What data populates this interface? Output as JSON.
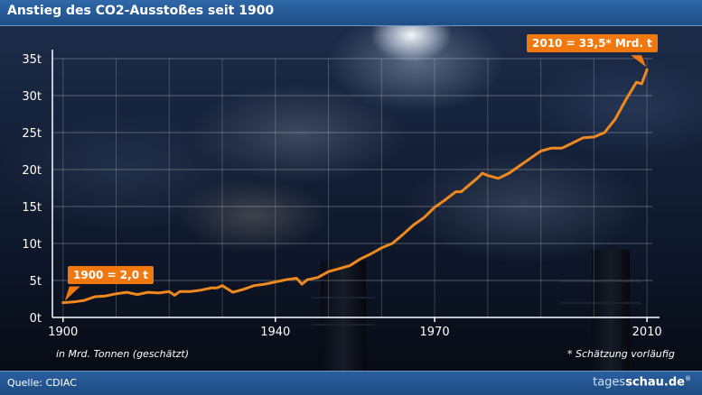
{
  "header": {
    "title": "Anstieg des CO2-Ausstoßes seit 1900"
  },
  "footer": {
    "source": "Quelle: CDIAC",
    "brand_light": "tages",
    "brand_bold": "schau.de",
    "brand_mark": "®"
  },
  "notes": {
    "unit": "in Mrd. Tonnen (geschätzt)",
    "estimate": "* Schätzung vorläufig"
  },
  "callouts": {
    "start": "1900 = 2,0 t",
    "end": "2010 = 33,5* Mrd. t"
  },
  "colors": {
    "line": "#f08a1e",
    "callout": "#f0780f",
    "header": "#2a5f9e"
  },
  "chart_data": {
    "type": "line",
    "title": "Anstieg des CO2-Ausstoßes seit 1900",
    "xlabel": "",
    "ylabel": "",
    "xlim": [
      1898,
      2011
    ],
    "ylim": [
      0,
      35
    ],
    "x_ticks": [
      1900,
      1940,
      1970,
      2010
    ],
    "x_tick_labels": [
      "1900",
      "1940",
      "1970",
      "2010"
    ],
    "y_ticks": [
      0,
      5,
      10,
      15,
      20,
      25,
      30,
      35
    ],
    "y_tick_labels": [
      "0t",
      "5t",
      "10t",
      "15t",
      "20t",
      "25t",
      "30t",
      "35t"
    ],
    "grid": true,
    "series": [
      {
        "x": [
          1900,
          1902,
          1904,
          1906,
          1908,
          1910,
          1912,
          1914,
          1916,
          1918,
          1920,
          1921,
          1922,
          1924,
          1926,
          1928,
          1929,
          1930,
          1932,
          1934,
          1936,
          1938,
          1940,
          1942,
          1944,
          1945,
          1946,
          1948,
          1950,
          1952,
          1954,
          1956,
          1958,
          1960,
          1962,
          1964,
          1966,
          1968,
          1970,
          1972,
          1974,
          1975,
          1976,
          1978,
          1979,
          1980,
          1982,
          1984,
          1986,
          1988,
          1990,
          1992,
          1994,
          1996,
          1998,
          2000,
          2002,
          2004,
          2006,
          2008,
          2009,
          2010
        ],
        "values": [
          2.0,
          2.1,
          2.3,
          2.8,
          2.9,
          3.2,
          3.4,
          3.1,
          3.4,
          3.3,
          3.5,
          3.0,
          3.5,
          3.5,
          3.7,
          4.0,
          4.0,
          4.3,
          3.4,
          3.8,
          4.3,
          4.5,
          4.8,
          5.1,
          5.3,
          4.5,
          5.1,
          5.4,
          6.2,
          6.6,
          7.0,
          7.9,
          8.6,
          9.4,
          10.0,
          11.2,
          12.5,
          13.5,
          14.9,
          15.9,
          17.0,
          17.0,
          17.6,
          18.8,
          19.5,
          19.2,
          18.8,
          19.5,
          20.5,
          21.5,
          22.5,
          22.9,
          22.9,
          23.6,
          24.3,
          24.4,
          25.0,
          26.8,
          29.4,
          31.8,
          31.6,
          33.5
        ]
      }
    ]
  }
}
